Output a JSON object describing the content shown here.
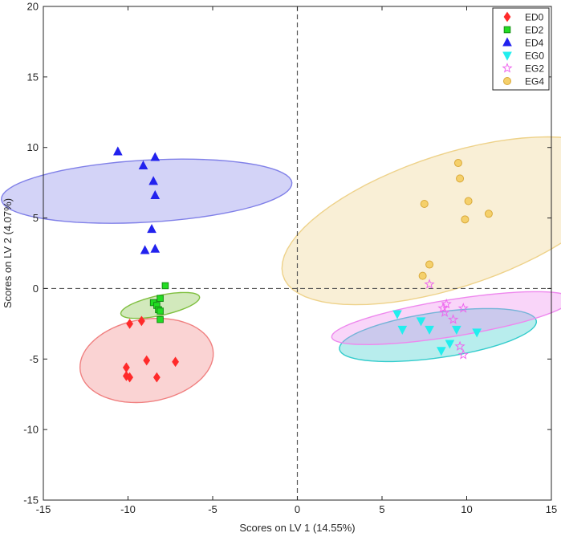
{
  "chart_data": {
    "type": "scatter",
    "title": "",
    "xlabel": "Scores on LV 1 (14.55%)",
    "ylabel": "Scores on LV 2 (4.07%)",
    "xlim": [
      -15,
      15
    ],
    "ylim": [
      -15,
      20
    ],
    "xticks": [
      "-15",
      "-10",
      "-5",
      "0",
      "5",
      "10",
      "15"
    ],
    "yticks": [
      "-15",
      "-10",
      "-5",
      "0",
      "5",
      "10",
      "15",
      "20"
    ],
    "grid": false,
    "zero_lines": true,
    "legend_position": "top-right",
    "series": [
      {
        "name": "ED0",
        "marker": "diamond",
        "color": "#ff2a2a",
        "ellipse_color": "#f08080",
        "points": [
          [
            -9.9,
            -2.5
          ],
          [
            -9.2,
            -2.3
          ],
          [
            -8.9,
            -5.1
          ],
          [
            -7.2,
            -5.2
          ],
          [
            -8.3,
            -6.3
          ],
          [
            -10.1,
            -5.6
          ],
          [
            -10.1,
            -6.2
          ],
          [
            -9.9,
            -6.3
          ]
        ],
        "ellipse": {
          "cx": -8.9,
          "cy": -5.1,
          "rx": 2.9,
          "ry": 4.0,
          "angle": -75
        }
      },
      {
        "name": "ED2",
        "marker": "square",
        "color": "#22dd22",
        "ellipse_color": "#7fbf3f",
        "points": [
          [
            -7.8,
            0.2
          ],
          [
            -8.1,
            -0.7
          ],
          [
            -8.5,
            -1.0
          ],
          [
            -8.3,
            -1.2
          ],
          [
            -8.2,
            -1.5
          ],
          [
            -8.1,
            -1.6
          ],
          [
            -8.1,
            -2.2
          ]
        ],
        "ellipse": {
          "cx": -8.1,
          "cy": -1.2,
          "rx": 0.7,
          "ry": 2.4,
          "angle": -75
        }
      },
      {
        "name": "ED4",
        "marker": "triangle",
        "color": "#2222ee",
        "ellipse_color": "#8080e8",
        "points": [
          [
            -10.6,
            9.7
          ],
          [
            -9.1,
            8.7
          ],
          [
            -8.4,
            9.3
          ],
          [
            -8.5,
            7.6
          ],
          [
            -8.4,
            6.6
          ],
          [
            -8.6,
            4.2
          ],
          [
            -9.0,
            2.7
          ],
          [
            -8.4,
            2.8
          ]
        ],
        "ellipse": {
          "cx": -8.9,
          "cy": 6.9,
          "rx": 2.2,
          "ry": 8.6,
          "angle": -86
        }
      },
      {
        "name": "EG0",
        "marker": "triangle-down",
        "color": "#22eeee",
        "ellipse_color": "#33cccc",
        "points": [
          [
            5.9,
            -1.8
          ],
          [
            6.2,
            -2.9
          ],
          [
            7.3,
            -2.3
          ],
          [
            7.8,
            -2.9
          ],
          [
            8.5,
            -4.4
          ],
          [
            9.0,
            -3.9
          ],
          [
            9.4,
            -2.9
          ],
          [
            10.6,
            -3.1
          ]
        ],
        "ellipse": {
          "cx": 8.3,
          "cy": -3.3,
          "rx": 5.9,
          "ry": 1.6,
          "angle": 10
        }
      },
      {
        "name": "EG2",
        "marker": "star",
        "color": "#ee66ee",
        "ellipse_color": "#ee88ee",
        "points": [
          [
            7.8,
            0.3
          ],
          [
            8.6,
            -1.4
          ],
          [
            8.7,
            -1.7
          ],
          [
            8.8,
            -1.1
          ],
          [
            9.2,
            -2.2
          ],
          [
            9.8,
            -1.4
          ],
          [
            9.6,
            -4.1
          ],
          [
            9.8,
            -4.7
          ]
        ],
        "ellipse": {
          "cx": 9.1,
          "cy": -2.1,
          "rx": 1.3,
          "ry": 7.2,
          "angle": -79
        }
      },
      {
        "name": "EG4",
        "marker": "circle",
        "color": "#f5d06b",
        "ellipse_color": "#eed28a",
        "points": [
          [
            9.5,
            8.9
          ],
          [
            9.6,
            7.8
          ],
          [
            7.5,
            6.0
          ],
          [
            10.1,
            6.2
          ],
          [
            9.9,
            4.9
          ],
          [
            11.3,
            5.3
          ],
          [
            7.8,
            1.7
          ],
          [
            7.4,
            0.9
          ]
        ],
        "ellipse": {
          "cx": 9.1,
          "cy": 4.8,
          "rx": 4.6,
          "ry": 10.7,
          "angle": -67
        }
      }
    ]
  }
}
